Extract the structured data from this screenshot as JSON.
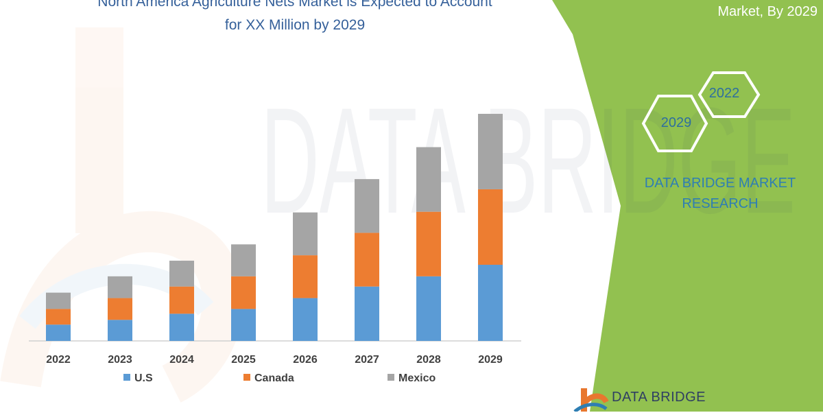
{
  "title_line1": "North America Agriculture Nets Market is Expected to Account",
  "title_line2": "for XX Million by 2029",
  "side_subtitle": "Market, By 2029",
  "hex_labels": [
    "2022",
    "2029"
  ],
  "brand_text_line1": "DATA BRIDGE MARKET",
  "brand_text_line2": "RESEARCH",
  "logo_text": "DATA BRIDGE",
  "watermark_text": "DATA BRIDGE",
  "colors": {
    "us": "#5b9bd5",
    "canada": "#ed7d31",
    "mexico": "#a5a5a5",
    "green_panel": "#92c150",
    "title": "#35609a",
    "brand": "#2e7eb3",
    "logo_orange": "#e8772e"
  },
  "chart_data": {
    "type": "bar",
    "stacked": true,
    "categories": [
      "2022",
      "2023",
      "2024",
      "2025",
      "2026",
      "2027",
      "2028",
      "2029"
    ],
    "series": [
      {
        "name": "U.S",
        "color": "#5b9bd5",
        "values": [
          24,
          31,
          40,
          47,
          63,
          80,
          95,
          112
        ]
      },
      {
        "name": "Canada",
        "color": "#ed7d31",
        "values": [
          23,
          32,
          40,
          48,
          63,
          79,
          95,
          111
        ]
      },
      {
        "name": "Mexico",
        "color": "#a5a5a5",
        "values": [
          24,
          32,
          38,
          47,
          63,
          79,
          95,
          111
        ]
      }
    ],
    "ylim": [
      0,
      340
    ],
    "title": "",
    "xlabel": "",
    "ylabel": "",
    "legend": "bottom",
    "grid": false
  }
}
